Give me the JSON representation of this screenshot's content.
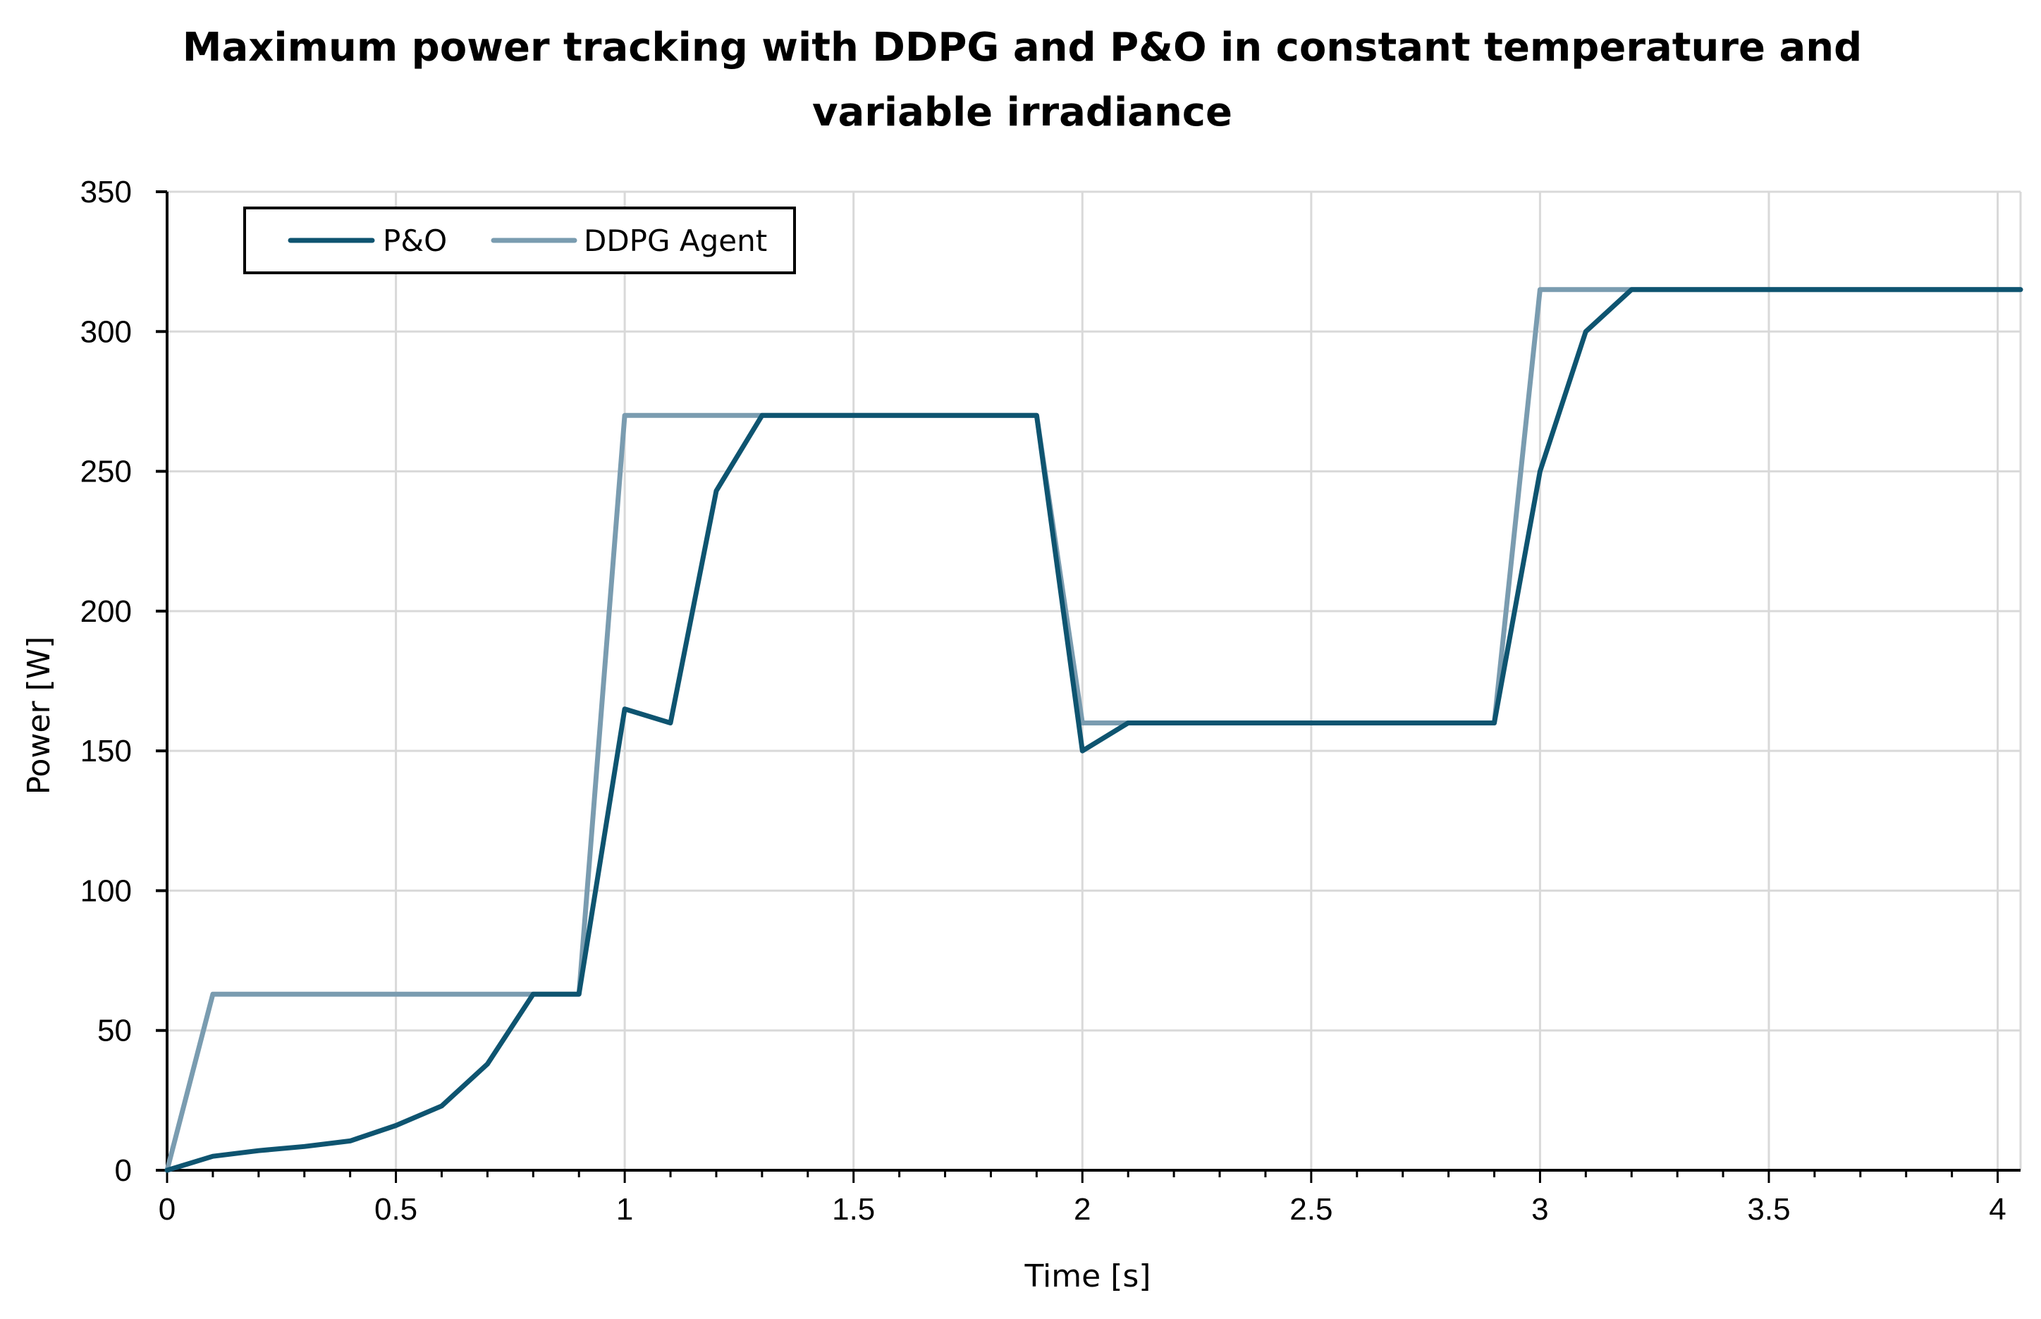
{
  "chart_data": {
    "type": "line",
    "title": "Maximum power tracking with DDPG and P&O in constant temperature and variable irradiance",
    "xlabel": "Time [s]",
    "ylabel": "Power [W]",
    "xlim": [
      0,
      4.05
    ],
    "ylim": [
      0,
      350
    ],
    "xticks": [
      0,
      0.5,
      1,
      1.5,
      2,
      2.5,
      3,
      3.5,
      4
    ],
    "xtick_labels": [
      "0",
      "0.5",
      "1",
      "1.5",
      "2",
      "2.5",
      "3",
      "3.5",
      "4"
    ],
    "yticks": [
      0,
      50,
      100,
      150,
      200,
      250,
      300,
      350
    ],
    "ytick_labels": [
      "0",
      "50",
      "100",
      "150",
      "200",
      "250",
      "300",
      "350"
    ],
    "grid": true,
    "legend_position": "top-left",
    "series": [
      {
        "name": "P&O",
        "color": "#0e5470",
        "x": [
          0,
          0.1,
          0.2,
          0.3,
          0.4,
          0.5,
          0.6,
          0.7,
          0.8,
          0.9,
          1.0,
          1.1,
          1.2,
          1.3,
          1.4,
          1.5,
          1.6,
          1.7,
          1.8,
          1.9,
          2.0,
          2.1,
          2.2,
          2.3,
          2.4,
          2.5,
          2.6,
          2.7,
          2.8,
          2.9,
          3.0,
          3.1,
          3.2,
          3.3,
          3.4,
          3.5,
          3.6,
          3.7,
          3.8,
          3.9,
          4.0,
          4.05
        ],
        "values": [
          0,
          5,
          7,
          8.5,
          10.5,
          16,
          23,
          38,
          63,
          63,
          165,
          160,
          243,
          270,
          270,
          270,
          270,
          270,
          270,
          270,
          150,
          160,
          160,
          160,
          160,
          160,
          160,
          160,
          160,
          160,
          250,
          300,
          315,
          315,
          315,
          315,
          315,
          315,
          315,
          315,
          315,
          315
        ]
      },
      {
        "name": "DDPG Agent",
        "color": "#7a9cb0",
        "x": [
          0,
          0.1,
          0.2,
          0.3,
          0.4,
          0.5,
          0.6,
          0.7,
          0.8,
          0.9,
          1.0,
          1.1,
          1.2,
          1.3,
          1.4,
          1.5,
          1.6,
          1.7,
          1.8,
          1.9,
          2.0,
          2.1,
          2.2,
          2.3,
          2.4,
          2.5,
          2.6,
          2.7,
          2.8,
          2.9,
          3.0,
          3.1,
          3.2,
          3.3,
          3.4,
          3.5,
          3.6,
          3.7,
          3.8,
          3.9,
          4.0,
          4.05
        ],
        "values": [
          0,
          63,
          63,
          63,
          63,
          63,
          63,
          63,
          63,
          63,
          270,
          270,
          270,
          270,
          270,
          270,
          270,
          270,
          270,
          270,
          160,
          160,
          160,
          160,
          160,
          160,
          160,
          160,
          160,
          160,
          315,
          315,
          315,
          315,
          315,
          315,
          315,
          315,
          315,
          315,
          315,
          315
        ]
      }
    ]
  }
}
